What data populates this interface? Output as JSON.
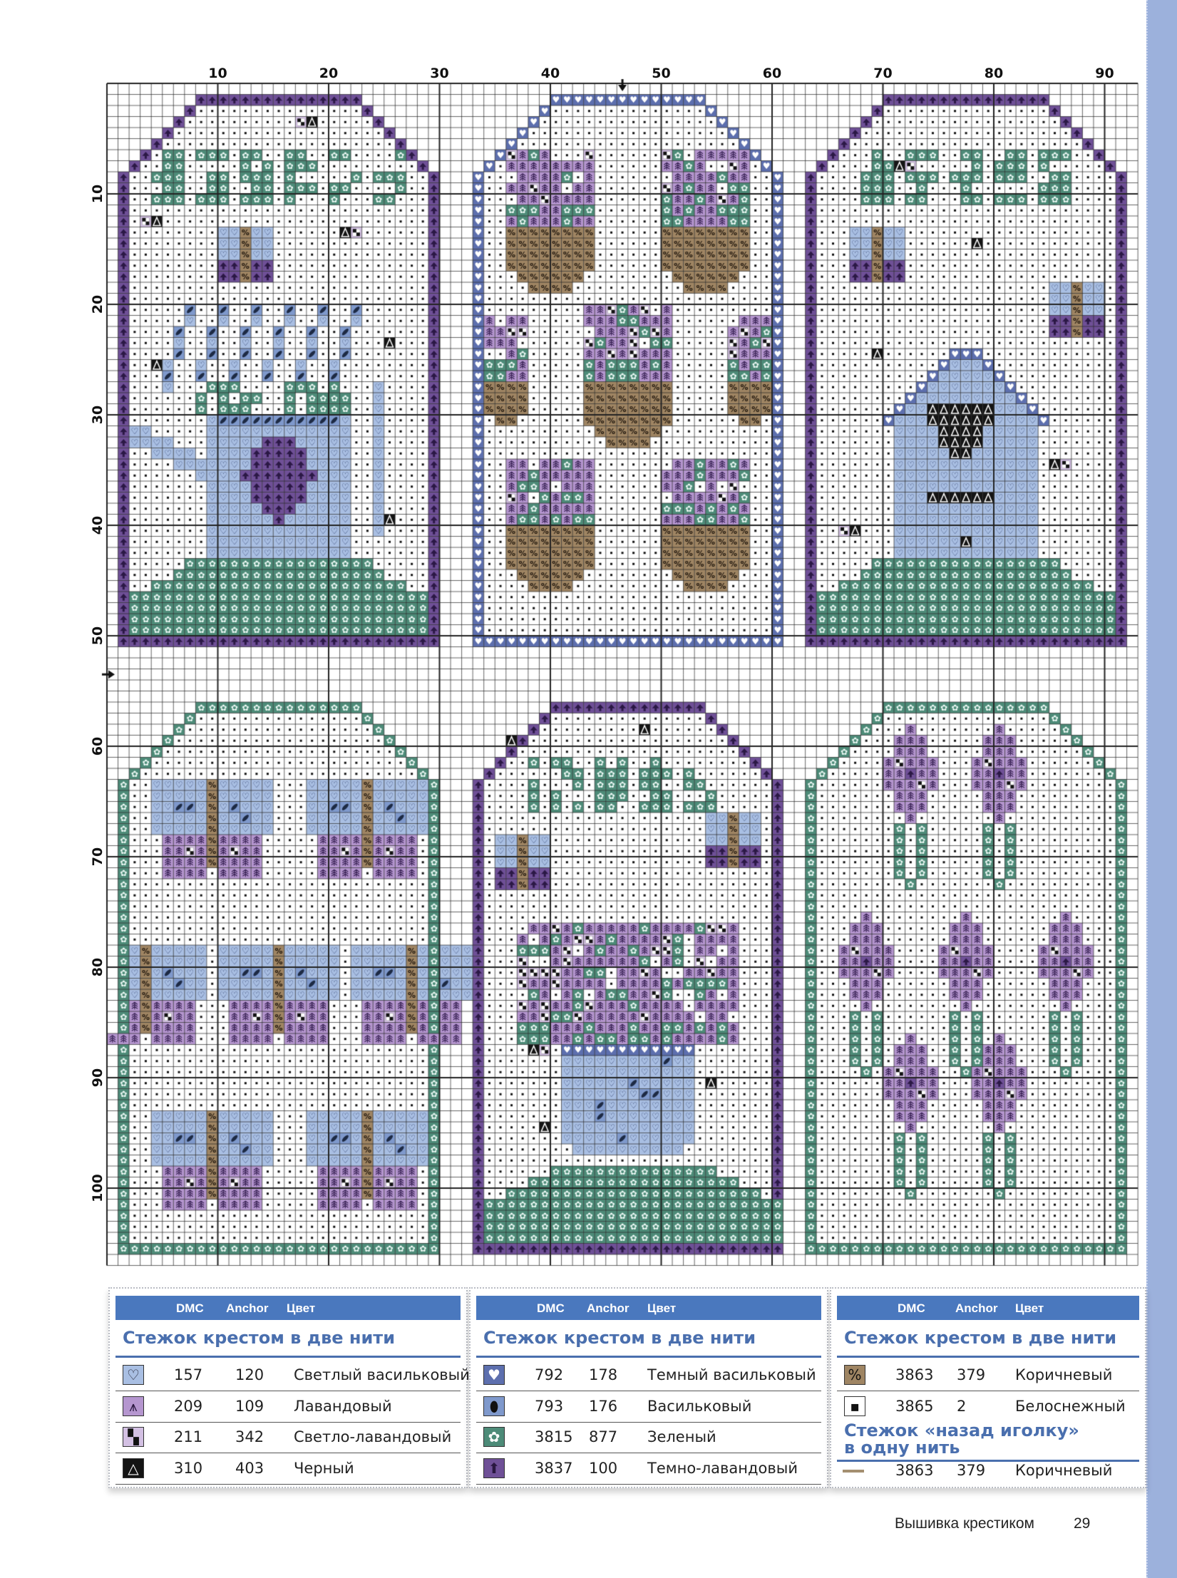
{
  "chart": {
    "top_ticks": [
      "10",
      "20",
      "30",
      "40",
      "50",
      "60",
      "70",
      "80",
      "90"
    ],
    "left_ticks": [
      "10",
      "20",
      "30",
      "40",
      "50",
      "60",
      "70",
      "80",
      "90",
      "100"
    ],
    "columns": 93,
    "rows": 107
  },
  "colors": {
    "light_cornflower": "#a9bfe3",
    "lavender": "#b596cf",
    "light_lavender": "#d3c0e3",
    "black": "#141414",
    "dark_cornflower": "#5d6fae",
    "cornflower": "#7f99cc",
    "green": "#4d8b78",
    "dark_lavender": "#6f5097",
    "brown": "#9f8563",
    "snow_white": "#ffffff",
    "header_blue": "#4a78be",
    "page_edge": "#9cb1dc"
  },
  "legend": {
    "header": {
      "dmc": "DMC",
      "anchor": "Anchor",
      "color": "Цвет"
    },
    "cross_stitch_title": "Стежок крестом в две нити",
    "backstitch_title_line1": "Стежок «назад иголку»",
    "backstitch_title_line2": "в одну нить",
    "tables": [
      {
        "rows": [
          {
            "symbol": "heart-outline",
            "dmc": "157",
            "anchor": "120",
            "name": "Светлый васильковый"
          },
          {
            "symbol": "tree",
            "dmc": "209",
            "anchor": "109",
            "name": "Лавандовый"
          },
          {
            "symbol": "checker",
            "dmc": "211",
            "anchor": "342",
            "name": "Светло-лавандовый"
          },
          {
            "symbol": "triangle",
            "dmc": "310",
            "anchor": "403",
            "name": "Черный"
          }
        ]
      },
      {
        "rows": [
          {
            "symbol": "heart-filled",
            "dmc": "792",
            "anchor": "178",
            "name": "Темный васильковый"
          },
          {
            "symbol": "oval-slash",
            "dmc": "793",
            "anchor": "176",
            "name": "Васильковый"
          },
          {
            "symbol": "flower",
            "dmc": "3815",
            "anchor": "877",
            "name": "Зеленый"
          },
          {
            "symbol": "arrow-up",
            "dmc": "3837",
            "anchor": "100",
            "name": "Темно-лавандовый"
          }
        ]
      },
      {
        "rows": [
          {
            "symbol": "percent",
            "dmc": "3863",
            "anchor": "379",
            "name": "Коричневый"
          },
          {
            "symbol": "dot",
            "dmc": "3865",
            "anchor": "2",
            "name": "Белоснежный"
          }
        ],
        "backstitch": {
          "symbol": "line",
          "dmc": "3863",
          "anchor": "379",
          "name": "Коричневый"
        }
      }
    ]
  },
  "footer": {
    "title": "Вышивка крестиком",
    "page": "29"
  }
}
